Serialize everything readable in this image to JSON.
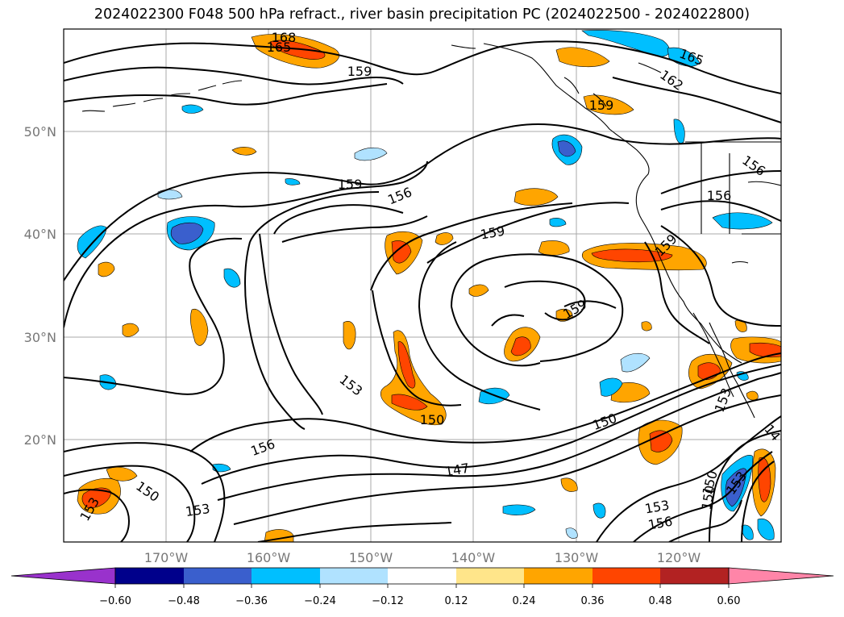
{
  "title": "2024022300 F048 500 hPa refract., river basin precipitation PC (2024022500 - 2024022800)",
  "map": {
    "lat_labels": [
      "50°N",
      "40°N",
      "30°N",
      "20°N"
    ],
    "lon_labels": [
      "170°W",
      "160°W",
      "150°W",
      "140°W",
      "130°W",
      "120°W"
    ],
    "contour_labels": [
      "168",
      "165",
      "159",
      "165",
      "162",
      "159",
      "156",
      "156",
      "156",
      "159",
      "159",
      "159",
      "159",
      "153",
      "150",
      "150",
      "153",
      "156",
      "147",
      "150",
      "153",
      "153",
      "156",
      "150",
      "153",
      "14",
      "150",
      "153"
    ]
  },
  "colorbar": {
    "tick_labels": [
      "−0.60",
      "−0.48",
      "−0.36",
      "−0.24",
      "−0.12",
      "0.12",
      "0.24",
      "0.36",
      "0.48",
      "0.60"
    ],
    "colors": [
      "#9932cc",
      "#00008b",
      "#3a5fcd",
      "#00bfff",
      "#b0e2ff",
      "#ffffff",
      "#ffe58a",
      "#ffa500",
      "#ff4500",
      "#b22222",
      "#ff85a8"
    ]
  }
}
